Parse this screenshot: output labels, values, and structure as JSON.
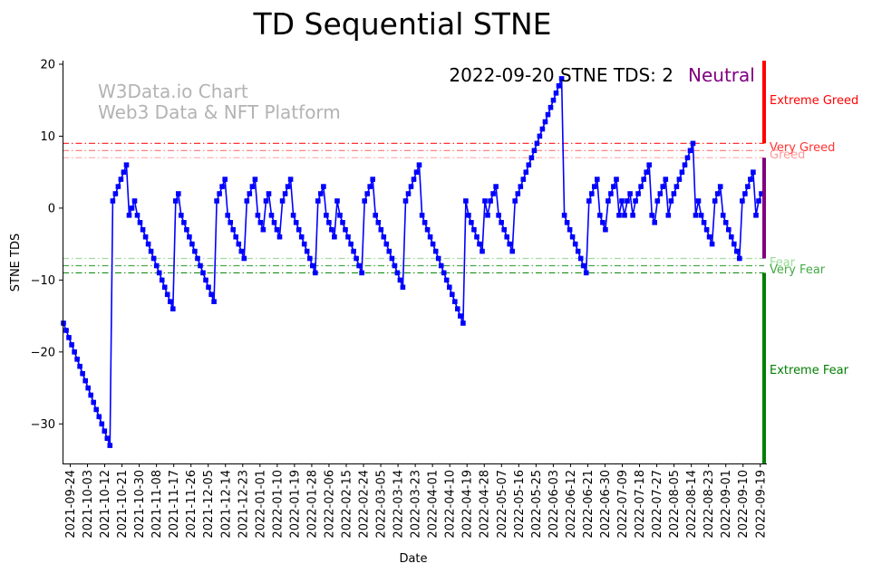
{
  "chart_data": {
    "type": "line",
    "title": "TD Sequential STNE",
    "xlabel": "Date",
    "ylabel": "STNE TDS",
    "ylim": [
      -35.5,
      20.5
    ],
    "yticks": [
      20,
      10,
      0,
      -10,
      -20,
      -30
    ],
    "x_start": "2021-09-20",
    "x_end": "2022-09-21",
    "x_tick_labels": [
      "2021-09-24",
      "2021-10-03",
      "2021-10-12",
      "2021-10-21",
      "2021-10-30",
      "2021-11-08",
      "2021-11-17",
      "2021-11-26",
      "2021-12-05",
      "2021-12-14",
      "2021-12-23",
      "2022-01-01",
      "2022-01-10",
      "2022-01-19",
      "2022-01-28",
      "2022-02-06",
      "2022-02-15",
      "2022-02-24",
      "2022-03-05",
      "2022-03-14",
      "2022-03-23",
      "2022-04-01",
      "2022-04-10",
      "2022-04-19",
      "2022-04-28",
      "2022-05-07",
      "2022-05-16",
      "2022-05-25",
      "2022-06-03",
      "2022-06-12",
      "2022-06-21",
      "2022-06-30",
      "2022-07-09",
      "2022-07-18",
      "2022-07-27",
      "2022-08-05",
      "2022-08-14",
      "2022-08-23",
      "2022-09-01",
      "2022-09-10",
      "2022-09-19"
    ],
    "annotation": "2022-09-20 STNE TDS: 2",
    "status": {
      "label": "Neutral",
      "color": "#800080"
    },
    "watermark": [
      "W3Data.io Chart",
      "Web3 Data & NFT Platform"
    ],
    "series": [
      {
        "name": "STNE TDS",
        "color": "#0000ff",
        "marker": "square",
        "values": [
          -16,
          -17,
          -18,
          -19,
          -20,
          -21,
          -22,
          -23,
          -24,
          -25,
          -26,
          -27,
          -28,
          -29,
          -30,
          -31,
          -32,
          -33,
          1,
          2,
          3,
          4,
          5,
          6,
          -1,
          0,
          1,
          -1,
          -2,
          -3,
          -4,
          -5,
          -6,
          -7,
          -8,
          -9,
          -10,
          -11,
          -12,
          -13,
          -14,
          1,
          2,
          -1,
          -2,
          -3,
          -4,
          -5,
          -6,
          -7,
          -8,
          -9,
          -10,
          -11,
          -12,
          -13,
          1,
          2,
          3,
          4,
          -1,
          -2,
          -3,
          -4,
          -5,
          -6,
          -7,
          1,
          2,
          3,
          4,
          -1,
          -2,
          -3,
          1,
          2,
          -1,
          -2,
          -3,
          -4,
          1,
          2,
          3,
          4,
          -1,
          -2,
          -3,
          -4,
          -5,
          -6,
          -7,
          -8,
          -9,
          1,
          2,
          3,
          -1,
          -2,
          -3,
          -4,
          1,
          -1,
          -2,
          -3,
          -4,
          -5,
          -6,
          -7,
          -8,
          -9,
          1,
          2,
          3,
          4,
          -1,
          -2,
          -3,
          -4,
          -5,
          -6,
          -7,
          -8,
          -9,
          -10,
          -11,
          1,
          2,
          3,
          4,
          5,
          6,
          -1,
          -2,
          -3,
          -4,
          -5,
          -6,
          -7,
          -8,
          -9,
          -10,
          -11,
          -12,
          -13,
          -14,
          -15,
          -16,
          1,
          -1,
          -2,
          -3,
          -4,
          -5,
          -6,
          1,
          -1,
          1,
          2,
          3,
          -1,
          -2,
          -3,
          -4,
          -5,
          -6,
          1,
          2,
          3,
          4,
          5,
          6,
          7,
          8,
          9,
          10,
          11,
          12,
          13,
          14,
          15,
          16,
          17,
          18,
          -1,
          -2,
          -3,
          -4,
          -5,
          -6,
          -7,
          -8,
          -9,
          1,
          2,
          3,
          4,
          -1,
          -2,
          -3,
          1,
          2,
          3,
          4,
          -1,
          1,
          -1,
          1,
          2,
          -1,
          1,
          2,
          3,
          4,
          5,
          6,
          -1,
          -2,
          1,
          2,
          3,
          4,
          -1,
          1,
          2,
          3,
          4,
          5,
          6,
          7,
          8,
          9,
          -1,
          1,
          -1,
          -2,
          -3,
          -4,
          -5,
          1,
          2,
          3,
          -1,
          -2,
          -3,
          -4,
          -5,
          -6,
          -7,
          1,
          2,
          3,
          4,
          5,
          -1,
          1,
          2
        ]
      }
    ],
    "reference_lines": [
      {
        "name": "Very Greed",
        "value": 9,
        "color": "#ff0000",
        "opacity": 0.8
      },
      {
        "name": "Greed",
        "value": 8,
        "color": "#ff0000",
        "opacity": 0.55
      },
      {
        "name": "Greed",
        "value": 7,
        "color": "#ff6666",
        "opacity": 0.5
      },
      {
        "name": "Fear",
        "value": -7,
        "color": "#33aa33",
        "opacity": 0.45
      },
      {
        "name": "Very Fear",
        "value": -8,
        "color": "#008000",
        "opacity": 0.7
      },
      {
        "name": "Very Fear",
        "value": -9,
        "color": "#008000",
        "opacity": 0.9
      }
    ],
    "zone_labels": [
      {
        "label": "Extreme Greed",
        "value": 15,
        "color": "#ff0000"
      },
      {
        "label": "Very Greed",
        "value": 8.5,
        "color": "#ff3333"
      },
      {
        "label": "Greed",
        "value": 7.5,
        "color": "#ff9999"
      },
      {
        "label": "Fear",
        "value": -7.5,
        "color": "#99dd99"
      },
      {
        "label": "Very Fear",
        "value": -8.5,
        "color": "#44aa44"
      },
      {
        "label": "Extreme Fear",
        "value": -22.5,
        "color": "#008000"
      }
    ],
    "zone_bars": [
      {
        "name": "extreme-greed",
        "from": 9,
        "to": 20.5,
        "color": "#ff0000"
      },
      {
        "name": "neutral",
        "from": -7,
        "to": 7,
        "color": "#800080"
      },
      {
        "name": "extreme-fear",
        "from": -35.5,
        "to": -9,
        "color": "#008000"
      }
    ]
  }
}
